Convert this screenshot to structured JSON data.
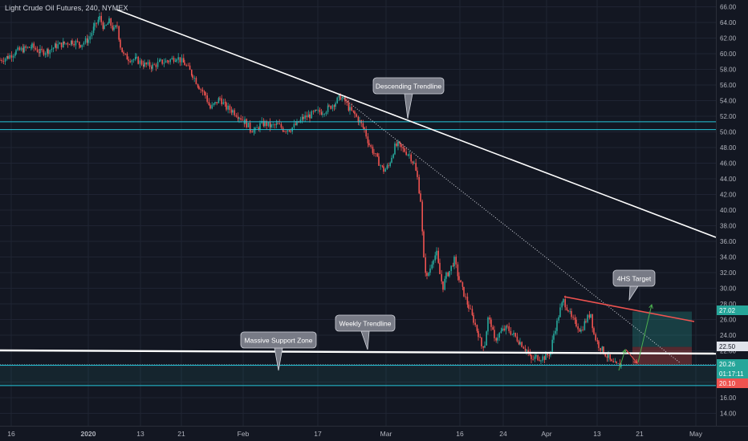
{
  "header": {
    "title": "Light Crude Oil Futures, 240, NYMEX"
  },
  "colors": {
    "background": "#131722",
    "grid": "#1f2433",
    "axis_text": "#b2b5be",
    "up": "#26a69a",
    "down": "#ef5350",
    "cyan_line": "#26c6da",
    "trend_white": "#ffffff",
    "red_trend": "#ef5350",
    "callout_bg": "#787b86",
    "callout_border": "#d1d4dc"
  },
  "chart_data": {
    "type": "candlestick",
    "title": "Light Crude Oil Futures, 240, NYMEX",
    "y_axis": {
      "position": "right",
      "range": [
        12.6,
        67.2
      ],
      "ticks": [
        "66.00",
        "64.00",
        "62.00",
        "60.00",
        "58.00",
        "56.00",
        "54.00",
        "52.00",
        "50.00",
        "48.00",
        "46.00",
        "44.00",
        "42.00",
        "40.00",
        "38.00",
        "36.00",
        "34.00",
        "32.00",
        "30.00",
        "28.00",
        "26.00",
        "24.00",
        "22.00",
        "20.00",
        "18.00",
        "16.00",
        "14.00"
      ]
    },
    "x_axis": {
      "ticks": [
        "16",
        "2020",
        "13",
        "21",
        "Feb",
        "17",
        "Mar",
        "16",
        "24",
        "Apr",
        "13",
        "21",
        "May"
      ]
    },
    "price_labels": [
      {
        "text": "27.02",
        "value": 27.02,
        "color": "#26a69a"
      },
      {
        "text": "22.50",
        "value": 22.5,
        "color": "#e0e3eb"
      },
      {
        "text": "20.26",
        "value": 20.26,
        "color": "#26a69a"
      },
      {
        "text": "01:17:11",
        "value": 19.2,
        "color": "#26a69a"
      },
      {
        "text": "20.10",
        "value": 20.1,
        "color": "#ef5350"
      }
    ],
    "horizontal_levels": [
      {
        "name": "resistance-upper",
        "value": 51.3
      },
      {
        "name": "resistance-lower",
        "value": 50.3
      },
      {
        "name": "support-upper",
        "value": 20.15
      },
      {
        "name": "support-lower",
        "value": 17.55
      }
    ],
    "annotations": [
      {
        "text": "Descending Trendline"
      },
      {
        "text": "4HS Target"
      },
      {
        "text": "Weekly Trendline"
      },
      {
        "text": "Massive Support Zone"
      }
    ],
    "series": {
      "close_path": [
        [
          0,
          59.2
        ],
        [
          10,
          59.6
        ],
        [
          20,
          60.3
        ],
        [
          30,
          60.6
        ],
        [
          40,
          60.9
        ],
        [
          50,
          60.2
        ],
        [
          60,
          60.4
        ],
        [
          70,
          61.0
        ],
        [
          80,
          61.3
        ],
        [
          90,
          61.6
        ],
        [
          100,
          61.2
        ],
        [
          110,
          61.8
        ],
        [
          118,
          63.5
        ],
        [
          124,
          64.6
        ],
        [
          130,
          63.2
        ],
        [
          136,
          64.1
        ],
        [
          142,
          63.0
        ],
        [
          146,
          63.6
        ],
        [
          150,
          61.0
        ],
        [
          154,
          59.8
        ],
        [
          160,
          59.4
        ],
        [
          170,
          59.2
        ],
        [
          180,
          58.6
        ],
        [
          190,
          58.4
        ],
        [
          200,
          58.9
        ],
        [
          210,
          59.1
        ],
        [
          220,
          59.6
        ],
        [
          230,
          58.7
        ],
        [
          240,
          57.3
        ],
        [
          248,
          55.8
        ],
        [
          256,
          54.7
        ],
        [
          262,
          53.0
        ],
        [
          268,
          53.6
        ],
        [
          274,
          54.3
        ],
        [
          282,
          53.1
        ],
        [
          290,
          52.7
        ],
        [
          298,
          52.0
        ],
        [
          305,
          51.3
        ],
        [
          312,
          50.4
        ],
        [
          318,
          50.1
        ],
        [
          324,
          50.9
        ],
        [
          330,
          51.1
        ],
        [
          338,
          50.7
        ],
        [
          346,
          50.9
        ],
        [
          354,
          50.3
        ],
        [
          362,
          50.4
        ],
        [
          370,
          51.0
        ],
        [
          378,
          51.8
        ],
        [
          386,
          52.1
        ],
        [
          394,
          52.5
        ],
        [
          402,
          52.6
        ],
        [
          410,
          53.1
        ],
        [
          418,
          53.8
        ],
        [
          424,
          54.5
        ],
        [
          430,
          53.9
        ],
        [
          436,
          52.8
        ],
        [
          442,
          52.2
        ],
        [
          448,
          51.3
        ],
        [
          454,
          50.3
        ],
        [
          460,
          48.4
        ],
        [
          466,
          47.3
        ],
        [
          472,
          46.1
        ],
        [
          478,
          45.1
        ],
        [
          484,
          45.6
        ],
        [
          488,
          46.9
        ],
        [
          492,
          48.1
        ],
        [
          496,
          48.3
        ],
        [
          500,
          47.9
        ],
        [
          504,
          47.6
        ],
        [
          510,
          47.1
        ],
        [
          516,
          45.9
        ],
        [
          520,
          44.1
        ],
        [
          524,
          41.3
        ],
        [
          528,
          33.6
        ],
        [
          532,
          31.3
        ],
        [
          536,
          32.6
        ],
        [
          540,
          34.0
        ],
        [
          544,
          34.4
        ],
        [
          548,
          31.8
        ],
        [
          552,
          30.2
        ],
        [
          556,
          31.6
        ],
        [
          560,
          32.2
        ],
        [
          566,
          33.6
        ],
        [
          572,
          31.1
        ],
        [
          578,
          29.3
        ],
        [
          584,
          27.6
        ],
        [
          590,
          25.9
        ],
        [
          596,
          24.2
        ],
        [
          600,
          22.6
        ],
        [
          604,
          22.9
        ],
        [
          608,
          26.1
        ],
        [
          612,
          25.4
        ],
        [
          616,
          23.3
        ],
        [
          620,
          23.9
        ],
        [
          626,
          24.6
        ],
        [
          632,
          24.9
        ],
        [
          640,
          24.0
        ],
        [
          648,
          23.1
        ],
        [
          656,
          22.1
        ],
        [
          662,
          20.8
        ],
        [
          668,
          21.2
        ],
        [
          674,
          21.1
        ],
        [
          680,
          21.2
        ],
        [
          686,
          21.9
        ],
        [
          690,
          24.2
        ],
        [
          694,
          25.6
        ],
        [
          698,
          27.3
        ],
        [
          702,
          28.4
        ],
        [
          708,
          27.3
        ],
        [
          712,
          26.1
        ],
        [
          718,
          25.4
        ],
        [
          724,
          24.6
        ],
        [
          730,
          25.9
        ],
        [
          736,
          26.8
        ],
        [
          740,
          24.1
        ],
        [
          746,
          22.7
        ],
        [
          752,
          21.9
        ],
        [
          758,
          21.1
        ],
        [
          762,
          20.4
        ],
        [
          768,
          20.1
        ],
        [
          774,
          20.26
        ]
      ]
    }
  }
}
